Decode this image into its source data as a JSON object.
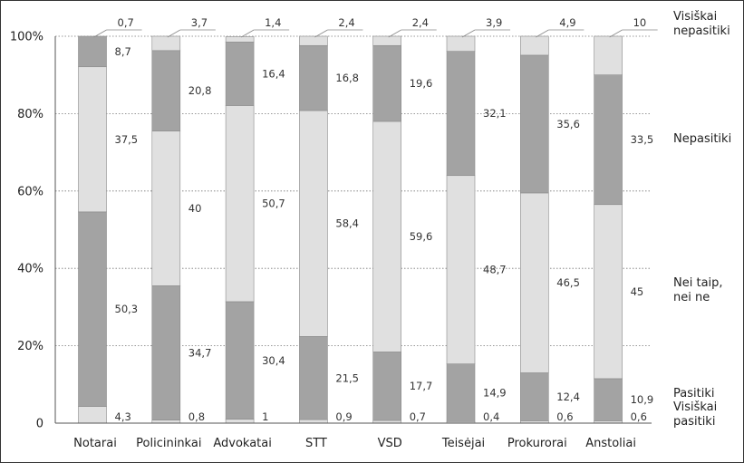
{
  "chart_data": {
    "type": "bar",
    "stacked": true,
    "normalized": true,
    "categories": [
      "Notarai",
      "Policininkai",
      "Advokatai",
      "STT",
      "VSD",
      "Teisėjai",
      "Prokurorai",
      "Anstoliai"
    ],
    "series": [
      {
        "name": "Visiškai pasitiki",
        "values": [
          4.3,
          0.8,
          1,
          0.9,
          0.7,
          0.4,
          0.6,
          0.6
        ],
        "color": "#e0e0e0"
      },
      {
        "name": "Pasitiki",
        "values": [
          50.3,
          34.7,
          30.4,
          21.5,
          17.7,
          14.9,
          12.4,
          10.9
        ],
        "color": "#a3a3a3"
      },
      {
        "name": "Nei taip, nei ne",
        "values": [
          37.5,
          40,
          50.7,
          58.4,
          59.6,
          48.7,
          46.5,
          45
        ],
        "color": "#e0e0e0"
      },
      {
        "name": "Nepasitiki",
        "values": [
          8.7,
          20.8,
          16.4,
          16.8,
          19.6,
          32.1,
          35.6,
          33.5
        ],
        "color": "#a3a3a3"
      },
      {
        "name": "Visiškai nepasitiki",
        "values": [
          0.7,
          3.7,
          1.4,
          2.4,
          2.4,
          3.9,
          4.9,
          10
        ],
        "color": "#e0e0e0"
      }
    ],
    "value_labels": [
      [
        "4,3",
        "50,3",
        "37,5",
        "8,7",
        "0,7"
      ],
      [
        "0,8",
        "34,7",
        "40",
        "20,8",
        "3,7"
      ],
      [
        "1",
        "30,4",
        "50,7",
        "16,4",
        "1,4"
      ],
      [
        "0,9",
        "21,5",
        "58,4",
        "16,8",
        "2,4"
      ],
      [
        "0,7",
        "17,7",
        "59,6",
        "19,6",
        "2,4"
      ],
      [
        "0,4",
        "14,9",
        "48,7",
        "32,1",
        "3,9"
      ],
      [
        "0,6",
        "12,4",
        "46,5",
        "35,6",
        "4,9"
      ],
      [
        "0,6",
        "10,9",
        "45",
        "33,5",
        "10"
      ]
    ],
    "yticks": [
      0,
      20,
      40,
      60,
      80,
      100
    ],
    "ytick_labels": [
      "0",
      "20%",
      "40%",
      "60%",
      "80%",
      "100%"
    ],
    "ylim": [
      0,
      100
    ],
    "grid": "horizontal-dotted",
    "legend": [
      {
        "lines": [
          "Visiškai",
          "pasitiki"
        ],
        "series": 0
      },
      {
        "lines": [
          "Pasitiki"
        ],
        "series": 1
      },
      {
        "lines": [
          "Nei taip,",
          "nei ne"
        ],
        "series": 2
      },
      {
        "lines": [
          "Nepasitiki"
        ],
        "series": 3
      },
      {
        "lines": [
          "Visiškai",
          "nepasitiki"
        ],
        "series": 4
      }
    ],
    "legend_placement": "right",
    "title": "",
    "xlabel": "",
    "ylabel": ""
  }
}
